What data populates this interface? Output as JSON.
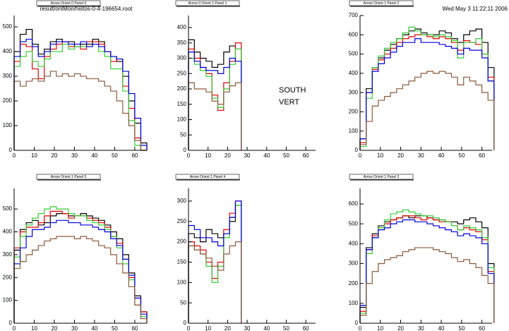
{
  "header": {
    "file": "result/onlMon/histos-0-4-196654.root",
    "date": "Wed May  3 11:22:11 2006"
  },
  "chart_data": [
    {
      "type": "histogram",
      "title": "Arrow Orient 0 Panel 0",
      "bins": [
        0,
        3,
        6,
        9,
        12,
        15,
        18,
        21,
        24,
        27,
        30,
        33,
        36,
        39,
        42,
        45,
        48,
        51,
        54,
        57,
        60,
        63,
        66
      ],
      "xlim": [
        0,
        66
      ],
      "ylim": [
        0,
        546
      ],
      "xticks": [
        0,
        10,
        20,
        30,
        40,
        50,
        60
      ],
      "yticks": [
        0,
        100,
        200,
        300,
        400,
        500
      ],
      "series": [
        {
          "color": "#000000",
          "values": [
            400,
            470,
            490,
            430,
            390,
            410,
            440,
            450,
            440,
            440,
            420,
            430,
            430,
            450,
            440,
            400,
            380,
            360,
            300,
            200,
            110,
            30
          ]
        },
        {
          "color": "#e00000",
          "values": [
            360,
            430,
            420,
            330,
            290,
            380,
            410,
            430,
            440,
            420,
            420,
            410,
            440,
            440,
            430,
            400,
            360,
            370,
            260,
            170,
            50,
            0
          ]
        },
        {
          "color": "#33cc33",
          "values": [
            340,
            380,
            400,
            360,
            340,
            370,
            400,
            400,
            430,
            410,
            420,
            420,
            420,
            430,
            400,
            380,
            330,
            330,
            240,
            120,
            20,
            0
          ]
        },
        {
          "color": "#0000dd",
          "values": [
            380,
            440,
            450,
            420,
            380,
            400,
            430,
            440,
            440,
            430,
            430,
            440,
            420,
            430,
            420,
            400,
            380,
            370,
            320,
            230,
            130,
            20
          ]
        },
        {
          "color": "#8b5a3c",
          "values": [
            280,
            260,
            280,
            290,
            280,
            300,
            320,
            300,
            310,
            300,
            310,
            300,
            290,
            290,
            280,
            260,
            240,
            200,
            150,
            100,
            40,
            0
          ]
        }
      ]
    },
    {
      "type": "histogram",
      "title": "Arrow 0 Orient 1 Panel 1",
      "bins": [
        0,
        3,
        6,
        9,
        12,
        15,
        18,
        21,
        24,
        27
      ],
      "xlim": [
        0,
        65
      ],
      "ylim": [
        0,
        439
      ],
      "xticks": [
        0,
        10,
        20,
        30,
        40,
        50,
        60
      ],
      "yticks": [
        0,
        50,
        100,
        150,
        200,
        250,
        300,
        350,
        400
      ],
      "annotations": [
        "SOUTH",
        "VERT"
      ],
      "series": [
        {
          "color": "#000000",
          "values": [
            360,
            320,
            300,
            290,
            270,
            280,
            320,
            340,
            330
          ]
        },
        {
          "color": "#e00000",
          "values": [
            330,
            300,
            270,
            250,
            180,
            130,
            220,
            290,
            350
          ]
        },
        {
          "color": "#33cc33",
          "values": [
            300,
            280,
            260,
            240,
            170,
            140,
            200,
            280,
            330
          ]
        },
        {
          "color": "#0000dd",
          "values": [
            320,
            290,
            270,
            260,
            260,
            250,
            270,
            300,
            290
          ]
        },
        {
          "color": "#8b5a3c",
          "values": [
            220,
            200,
            200,
            190,
            160,
            150,
            190,
            210,
            220
          ]
        }
      ]
    },
    {
      "type": "histogram",
      "title": "Arrow Orient 1 Panel 2",
      "bins": [
        0,
        3,
        6,
        9,
        12,
        15,
        18,
        21,
        24,
        27,
        30,
        33,
        36,
        39,
        42,
        45,
        48,
        51,
        54,
        57,
        60,
        63,
        66
      ],
      "xlim": [
        0,
        65
      ],
      "ylim": [
        0,
        700
      ],
      "xticks": [
        0,
        10,
        20,
        30,
        40,
        50,
        60
      ],
      "yticks": [
        0,
        100,
        200,
        300,
        400,
        500,
        600,
        700
      ],
      "series": [
        {
          "color": "#000000",
          "values": [
            60,
            320,
            430,
            480,
            520,
            550,
            580,
            600,
            620,
            630,
            610,
            600,
            600,
            620,
            610,
            580,
            560,
            600,
            620,
            630,
            560,
            430
          ]
        },
        {
          "color": "#e00000",
          "values": [
            40,
            300,
            420,
            470,
            500,
            530,
            560,
            580,
            590,
            600,
            600,
            590,
            580,
            590,
            580,
            560,
            520,
            570,
            560,
            550,
            500,
            380
          ]
        },
        {
          "color": "#33cc33",
          "values": [
            20,
            270,
            430,
            490,
            530,
            560,
            580,
            610,
            640,
            620,
            600,
            600,
            590,
            600,
            590,
            570,
            480,
            560,
            560,
            580,
            500,
            360
          ]
        },
        {
          "color": "#0000dd",
          "values": [
            60,
            300,
            410,
            450,
            480,
            510,
            540,
            560,
            560,
            580,
            560,
            560,
            560,
            550,
            540,
            530,
            500,
            530,
            520,
            520,
            480,
            360
          ]
        },
        {
          "color": "#8b5a3c",
          "values": [
            30,
            150,
            230,
            260,
            280,
            300,
            320,
            340,
            360,
            380,
            400,
            410,
            400,
            410,
            400,
            380,
            340,
            380,
            360,
            340,
            300,
            260
          ]
        }
      ]
    },
    {
      "type": "histogram",
      "title": "Arrow Orient 1 Panel 5",
      "bins": [
        0,
        3,
        6,
        9,
        12,
        15,
        18,
        21,
        24,
        27,
        30,
        33,
        36,
        39,
        42,
        45,
        48,
        51,
        54,
        57,
        60,
        63,
        66
      ],
      "xlim": [
        0,
        66
      ],
      "ylim": [
        0,
        590
      ],
      "xticks": [
        0,
        10,
        20,
        30,
        40,
        50,
        60
      ],
      "yticks": [
        0,
        100,
        200,
        300,
        400,
        500
      ],
      "series": [
        {
          "color": "#000000",
          "values": [
            320,
            410,
            440,
            450,
            430,
            440,
            470,
            480,
            480,
            470,
            470,
            480,
            470,
            460,
            450,
            430,
            400,
            370,
            300,
            220,
            120,
            50
          ]
        },
        {
          "color": "#e00000",
          "values": [
            330,
            400,
            420,
            420,
            440,
            470,
            490,
            490,
            480,
            460,
            470,
            470,
            460,
            450,
            440,
            420,
            380,
            350,
            280,
            200,
            110,
            50
          ]
        },
        {
          "color": "#33cc33",
          "values": [
            290,
            380,
            430,
            460,
            480,
            500,
            510,
            500,
            500,
            480,
            470,
            470,
            450,
            440,
            430,
            410,
            380,
            330,
            260,
            190,
            80,
            30
          ]
        },
        {
          "color": "#0000dd",
          "values": [
            260,
            330,
            380,
            410,
            410,
            420,
            440,
            450,
            450,
            440,
            440,
            430,
            430,
            420,
            410,
            400,
            370,
            340,
            280,
            210,
            110,
            40
          ]
        },
        {
          "color": "#8b5a3c",
          "values": [
            240,
            270,
            300,
            320,
            340,
            360,
            370,
            380,
            380,
            380,
            370,
            380,
            370,
            360,
            340,
            330,
            300,
            260,
            220,
            160,
            80,
            20
          ]
        }
      ]
    },
    {
      "type": "histogram",
      "title": "Arrow Orient 1 Panel 4",
      "bins": [
        0,
        3,
        6,
        9,
        12,
        15,
        18,
        21,
        24,
        27
      ],
      "xlim": [
        0,
        65
      ],
      "ylim": [
        0,
        331
      ],
      "xticks": [
        0,
        10,
        20,
        30,
        40,
        50,
        60
      ],
      "yticks": [
        0,
        50,
        100,
        150,
        200,
        250,
        300
      ],
      "series": [
        {
          "color": "#000000",
          "values": [
            220,
            210,
            200,
            230,
            220,
            210,
            220,
            250,
            290
          ]
        },
        {
          "color": "#e00000",
          "values": [
            200,
            190,
            180,
            150,
            110,
            150,
            230,
            270,
            300
          ]
        },
        {
          "color": "#33cc33",
          "values": [
            190,
            180,
            170,
            140,
            100,
            140,
            210,
            260,
            290
          ]
        },
        {
          "color": "#0000dd",
          "values": [
            240,
            230,
            210,
            210,
            200,
            190,
            220,
            260,
            300
          ]
        },
        {
          "color": "#8b5a3c",
          "values": [
            190,
            180,
            170,
            160,
            140,
            130,
            170,
            190,
            200
          ]
        }
      ]
    },
    {
      "type": "histogram",
      "title": "Arrow Orient 1 Panel 3",
      "bins": [
        0,
        3,
        6,
        9,
        12,
        15,
        18,
        21,
        24,
        27,
        30,
        33,
        36,
        39,
        42,
        45,
        48,
        51,
        54,
        57,
        60,
        63,
        66
      ],
      "xlim": [
        0,
        65
      ],
      "ylim": [
        0,
        678
      ],
      "xticks": [
        0,
        10,
        20,
        30,
        40,
        50,
        60
      ],
      "yticks": [
        0,
        100,
        200,
        300,
        400,
        500,
        600
      ],
      "series": [
        {
          "color": "#000000",
          "values": [
            80,
            380,
            450,
            490,
            510,
            520,
            530,
            540,
            530,
            540,
            540,
            530,
            520,
            520,
            510,
            510,
            500,
            520,
            530,
            510,
            480,
            300
          ]
        },
        {
          "color": "#e00000",
          "values": [
            60,
            370,
            440,
            480,
            500,
            520,
            530,
            540,
            540,
            530,
            520,
            530,
            520,
            510,
            510,
            490,
            470,
            480,
            470,
            460,
            420,
            260
          ]
        },
        {
          "color": "#33cc33",
          "values": [
            50,
            350,
            430,
            480,
            520,
            550,
            560,
            570,
            560,
            550,
            540,
            540,
            530,
            520,
            510,
            490,
            470,
            490,
            480,
            470,
            430,
            280
          ]
        },
        {
          "color": "#0000dd",
          "values": [
            90,
            370,
            430,
            470,
            480,
            500,
            510,
            520,
            520,
            510,
            510,
            500,
            490,
            480,
            470,
            460,
            440,
            450,
            440,
            430,
            400,
            250
          ]
        },
        {
          "color": "#8b5a3c",
          "values": [
            40,
            200,
            260,
            300,
            320,
            330,
            340,
            360,
            370,
            380,
            380,
            380,
            370,
            360,
            350,
            330,
            310,
            320,
            300,
            280,
            240,
            200
          ]
        }
      ]
    }
  ]
}
